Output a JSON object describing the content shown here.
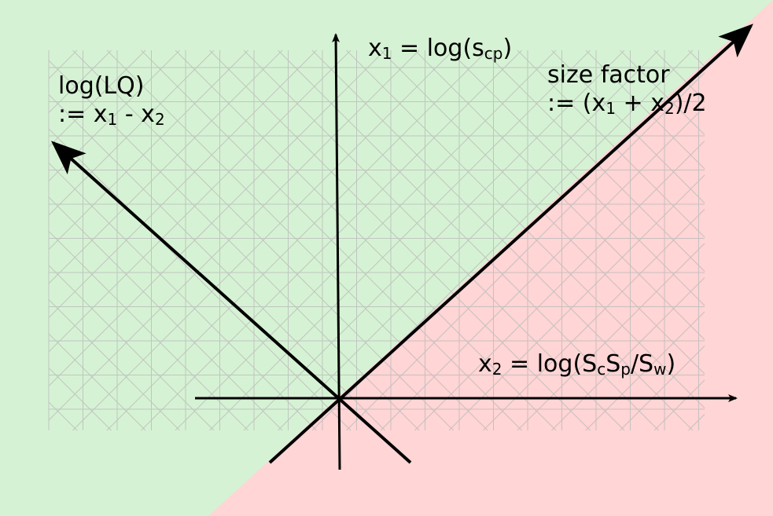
{
  "colors": {
    "background_green": "#d6f2d4",
    "region_red": "#ffd5d5",
    "grid": "#b8b8b8",
    "axes": "#000000"
  },
  "labels": {
    "x1": {
      "lhs": "x",
      "sub1": "1",
      "rhs": " = log(s",
      "sub2": "cp",
      "end": ")"
    },
    "x2": {
      "lhs": "x",
      "sub1": "2",
      "rhs": " = log(S",
      "sub2": "c",
      "mid1": "S",
      "sub3": "p",
      "mid2": "/S",
      "sub4": "w",
      "end": ")"
    },
    "lq": {
      "line1": "log(LQ)",
      "line2_a": ":= x",
      "line2_sub1": "1",
      "line2_b": " - x",
      "line2_sub2": "2"
    },
    "size": {
      "line1": "size factor",
      "line2_a": ":= (x",
      "line2_sub1": "1",
      "line2_b": " + x",
      "line2_sub2": "2",
      "line2_c": ")/2"
    }
  }
}
